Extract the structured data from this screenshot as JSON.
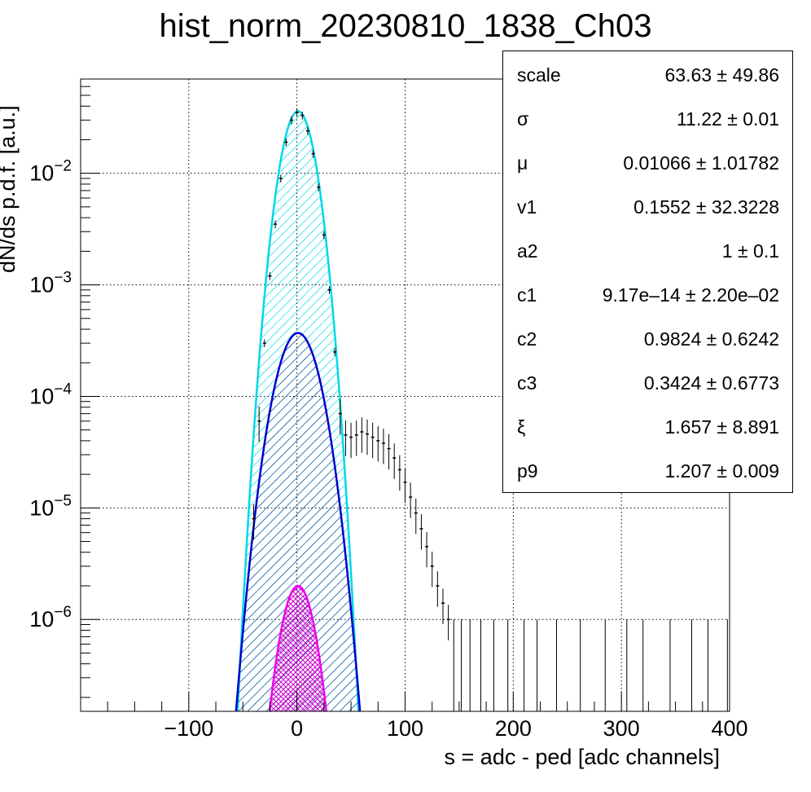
{
  "chart_data": {
    "type": "histogram-with-fits",
    "title": "hist_norm_20230810_1838_Ch03",
    "xlabel": "s = adc - ped [adc channels]",
    "ylabel": "dN/ds p.d.f. [a.u.]",
    "xlim": [
      -200,
      400
    ],
    "ylim": [
      1.5e-07,
      0.07
    ],
    "yscale": "log",
    "grid": true,
    "x_ticks": [
      -100,
      0,
      100,
      200,
      300,
      400
    ],
    "x_tick_labels": [
      "−100",
      "0",
      "100",
      "200",
      "300",
      "400"
    ],
    "y_ticks": [
      1e-06,
      1e-05,
      0.0001,
      0.001,
      0.01
    ],
    "y_tick_labels": [
      {
        "base": "10",
        "exp": "−6"
      },
      {
        "base": "10",
        "exp": "−5"
      },
      {
        "base": "10",
        "exp": "−4"
      },
      {
        "base": "10",
        "exp": "−3"
      },
      {
        "base": "10",
        "exp": "−2"
      }
    ],
    "series": [
      {
        "kind": "gauss-fill",
        "color": "#00d8e8",
        "hatch": "diag",
        "mu": 1,
        "sigma": 11.22,
        "peak": 0.036
      },
      {
        "kind": "gauss-fill",
        "color": "#0000cc",
        "hatch": "diag",
        "mu": 1,
        "sigma": 14.5,
        "peak": 0.00037
      },
      {
        "kind": "gauss-fill",
        "color": "#ee00ee",
        "hatch": "cross",
        "mu": 1,
        "sigma": 11.5,
        "peak": 2e-06
      },
      {
        "kind": "data",
        "color": "#000000",
        "points": [
          [
            -40,
            8e-06
          ],
          [
            -35,
            6e-05
          ],
          [
            -30,
            0.0003
          ],
          [
            -25,
            0.0012
          ],
          [
            -20,
            0.0035
          ],
          [
            -15,
            0.009
          ],
          [
            -10,
            0.019
          ],
          [
            -5,
            0.03
          ],
          [
            0,
            0.035
          ],
          [
            5,
            0.033
          ],
          [
            10,
            0.024
          ],
          [
            15,
            0.015
          ],
          [
            20,
            0.0075
          ],
          [
            25,
            0.0028
          ],
          [
            30,
            0.0009
          ],
          [
            35,
            0.00025
          ],
          [
            40,
            7e-05
          ],
          [
            45,
            4.5e-05
          ],
          [
            50,
            4.3e-05
          ],
          [
            55,
            4.5e-05
          ],
          [
            60,
            4.8e-05
          ],
          [
            65,
            4.6e-05
          ],
          [
            70,
            4.3e-05
          ],
          [
            75,
            4e-05
          ],
          [
            80,
            3.8e-05
          ],
          [
            85,
            3.4e-05
          ],
          [
            90,
            2.8e-05
          ],
          [
            95,
            2.2e-05
          ],
          [
            100,
            1.7e-05
          ],
          [
            105,
            1.25e-05
          ],
          [
            110,
            9e-06
          ],
          [
            115,
            6.5e-06
          ],
          [
            120,
            4.5e-06
          ],
          [
            125,
            3e-06
          ],
          [
            130,
            2e-06
          ],
          [
            135,
            1.4e-06
          ],
          [
            140,
            1e-06
          ]
        ],
        "sparse_x": [
          145,
          152,
          160,
          170,
          182,
          195,
          210,
          222,
          240,
          262,
          285,
          305,
          320,
          345,
          365,
          380,
          398
        ]
      }
    ]
  },
  "stats": [
    {
      "name": "scale",
      "value": "63.63 ± 49.86"
    },
    {
      "name": "σ",
      "value": "11.22 ± 0.01"
    },
    {
      "name": "μ",
      "value": "0.01066 ± 1.01782"
    },
    {
      "name": "v1",
      "value": "0.1552 ± 32.3228"
    },
    {
      "name": "a2",
      "value": "1 ± 0.1"
    },
    {
      "name": "c1",
      "value": "9.17e–14 ± 2.20e–02"
    },
    {
      "name": "c2",
      "value": "0.9824 ± 0.6242"
    },
    {
      "name": "c3",
      "value": "0.3424 ± 0.6773"
    },
    {
      "name": "ξ",
      "value": "1.657 ± 8.891"
    },
    {
      "name": "p9",
      "value": "1.207 ± 0.009"
    }
  ]
}
